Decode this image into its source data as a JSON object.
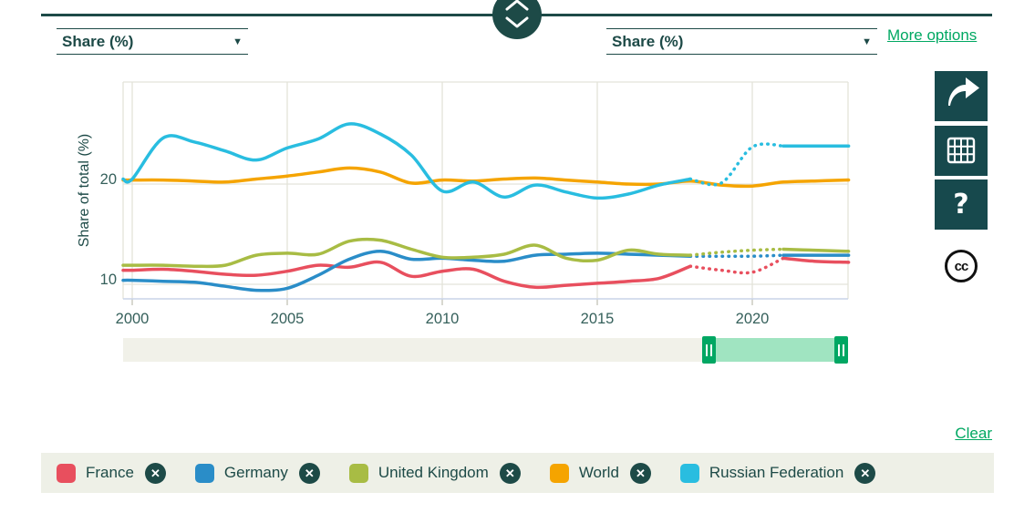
{
  "controls": {
    "left_select_value": "Share (%)",
    "right_select_value": "Share (%)",
    "more_options_label": "More options",
    "caret_glyph": "▼"
  },
  "toolbar": {
    "buttons": [
      {
        "icon": "share-icon"
      },
      {
        "icon": "data-table-icon"
      },
      {
        "icon": "help-icon",
        "glyph": "?"
      },
      {
        "icon": "creative-commons-icon",
        "glyph": "cc"
      }
    ],
    "help_glyph": "?",
    "cc_label": "cc"
  },
  "chart_data": {
    "type": "line",
    "title": "",
    "xlabel": "",
    "ylabel": "Share of total (%)",
    "x": [
      2000,
      2001,
      2002,
      2003,
      2004,
      2005,
      2006,
      2007,
      2008,
      2009,
      2010,
      2011,
      2012,
      2013,
      2014,
      2015,
      2016,
      2017,
      2018,
      2019,
      2020,
      2021,
      2022,
      2023
    ],
    "xticks": [
      2000,
      2005,
      2010,
      2015,
      2020
    ],
    "yticks": [
      10,
      20
    ],
    "xlim": [
      1999.7,
      2023.1
    ],
    "ylim": [
      8.5,
      30.2
    ],
    "grid": true,
    "legend_position": "bottom",
    "series": [
      {
        "name": "France",
        "color": "#e84f5e",
        "dotted_range": [
          2018,
          2021
        ],
        "values": [
          11.4,
          11.5,
          11.3,
          11.0,
          10.9,
          11.3,
          11.9,
          11.7,
          12.2,
          10.8,
          11.3,
          11.5,
          10.3,
          9.7,
          9.9,
          10.1,
          10.3,
          10.6,
          11.8,
          11.4,
          11.2,
          12.6,
          12.3,
          12.2
        ]
      },
      {
        "name": "Germany",
        "color": "#2a8dc8",
        "dotted_range": [
          2018,
          2021
        ],
        "values": [
          10.4,
          10.3,
          10.2,
          9.8,
          9.4,
          9.6,
          10.9,
          12.5,
          13.3,
          12.5,
          12.6,
          12.4,
          12.3,
          12.9,
          13.0,
          13.1,
          13.0,
          12.9,
          12.8,
          12.8,
          12.8,
          12.9,
          12.9,
          12.9
        ]
      },
      {
        "name": "United Kingdom",
        "color": "#a8bc44",
        "dotted_range": [
          2018,
          2021
        ],
        "values": [
          11.9,
          11.9,
          11.8,
          11.9,
          12.9,
          13.1,
          13.0,
          14.3,
          14.4,
          13.5,
          12.7,
          12.7,
          13.0,
          13.9,
          12.6,
          12.4,
          13.4,
          13.0,
          12.9,
          13.2,
          13.4,
          13.5,
          13.4,
          13.3
        ]
      },
      {
        "name": "World",
        "color": "#f5a400",
        "dotted_range": null,
        "values": [
          20.4,
          20.4,
          20.3,
          20.2,
          20.5,
          20.8,
          21.2,
          21.6,
          21.2,
          20.1,
          20.4,
          20.3,
          20.5,
          20.6,
          20.4,
          20.2,
          20.0,
          20.0,
          20.3,
          19.9,
          19.8,
          20.2,
          20.3,
          20.4
        ]
      },
      {
        "name": "Russian Federation",
        "color": "#29bde0",
        "dotted_range": [
          2018,
          2021
        ],
        "values": [
          20.5,
          24.6,
          24.2,
          23.3,
          22.4,
          23.6,
          24.5,
          26.0,
          25.0,
          22.9,
          19.3,
          20.2,
          18.7,
          19.9,
          19.2,
          18.6,
          19.0,
          19.9,
          20.5,
          20.1,
          23.7,
          23.8,
          23.8,
          23.8
        ]
      }
    ]
  },
  "range_slider": {
    "selection_start_frac": 0.799,
    "selection_end_frac": 1.0
  },
  "legend": {
    "clear_label": "Clear",
    "close_glyph": "✕",
    "items": [
      {
        "label": "France",
        "color": "#e84f5e"
      },
      {
        "label": "Germany",
        "color": "#2a8dc8"
      },
      {
        "label": "United Kingdom",
        "color": "#a8bc44"
      },
      {
        "label": "World",
        "color": "#f5a400"
      },
      {
        "label": "Russian Federation",
        "color": "#29bde0"
      }
    ]
  },
  "colors": {
    "teal_text": "#1d4a47",
    "teal_button": "#17494d",
    "link_green": "#00a862",
    "slider_track": "#f1f1e9",
    "slider_range": "#a0e4c1",
    "slider_handle": "#00a763",
    "legend_bg": "#eef0e7",
    "gridline": "#e3e3d9",
    "axis_line": "#c9d4e8",
    "tick_text": "#35605b"
  }
}
